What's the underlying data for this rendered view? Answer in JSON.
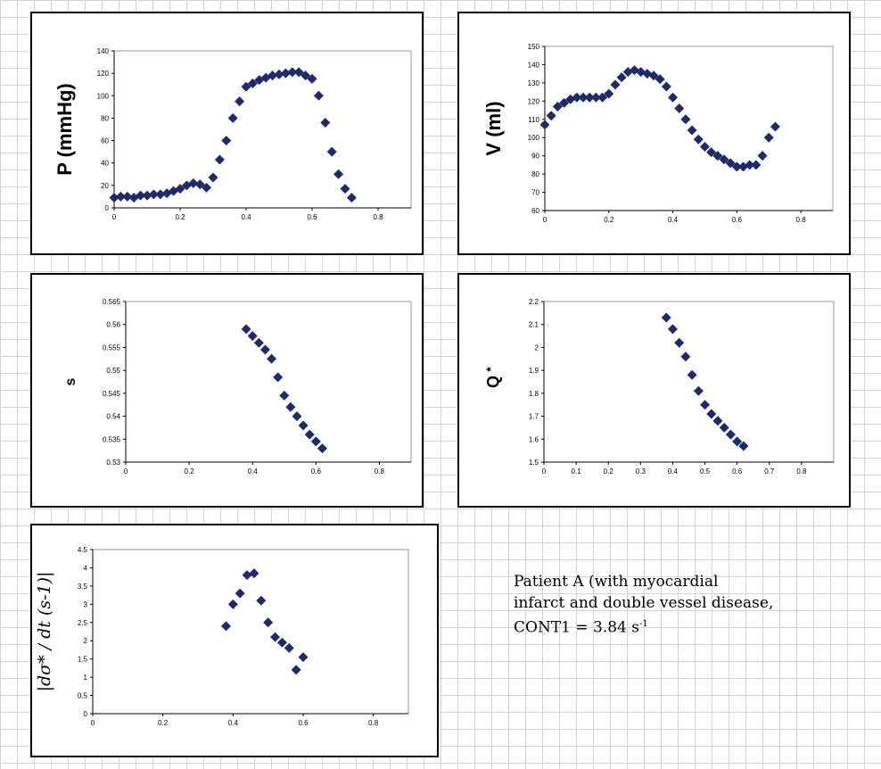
{
  "chart_data": [
    {
      "id": "P",
      "type": "scatter",
      "ylabel": "P (mmHg)",
      "xlim": [
        0,
        0.9
      ],
      "ylim": [
        0,
        140
      ],
      "xticks": [
        "0",
        "0.2",
        "0.4",
        "0.6",
        "0.8"
      ],
      "yticks": [
        "0",
        "20",
        "40",
        "60",
        "80",
        "100",
        "120",
        "140"
      ],
      "x": [
        0,
        0.02,
        0.04,
        0.06,
        0.08,
        0.1,
        0.12,
        0.14,
        0.16,
        0.18,
        0.2,
        0.22,
        0.24,
        0.26,
        0.28,
        0.3,
        0.32,
        0.34,
        0.36,
        0.38,
        0.4,
        0.42,
        0.44,
        0.46,
        0.48,
        0.5,
        0.52,
        0.54,
        0.56,
        0.58,
        0.6,
        0.62,
        0.64,
        0.66,
        0.68,
        0.7,
        0.72
      ],
      "y": [
        9,
        10,
        10,
        9,
        11,
        11,
        12,
        12,
        13,
        15,
        17,
        20,
        22,
        21,
        18,
        27,
        43,
        60,
        80,
        95,
        108,
        111,
        114,
        116,
        118,
        119,
        120,
        121,
        121,
        118,
        115,
        100,
        76,
        50,
        30,
        17,
        9
      ]
    },
    {
      "id": "V",
      "type": "scatter",
      "ylabel": "V (ml)",
      "xlim": [
        0,
        0.9
      ],
      "ylim": [
        60,
        150
      ],
      "xticks": [
        "0",
        "0.2",
        "0.4",
        "0.6",
        "0.8"
      ],
      "yticks": [
        "60",
        "70",
        "80",
        "90",
        "100",
        "110",
        "120",
        "130",
        "140",
        "150"
      ],
      "x": [
        0,
        0.02,
        0.04,
        0.06,
        0.08,
        0.1,
        0.12,
        0.14,
        0.16,
        0.18,
        0.2,
        0.22,
        0.24,
        0.26,
        0.28,
        0.3,
        0.32,
        0.34,
        0.36,
        0.38,
        0.4,
        0.42,
        0.44,
        0.46,
        0.48,
        0.5,
        0.52,
        0.54,
        0.56,
        0.58,
        0.6,
        0.62,
        0.64,
        0.66,
        0.68,
        0.7,
        0.72
      ],
      "y": [
        107,
        112,
        117,
        119,
        121,
        122,
        122,
        122,
        122,
        122,
        124,
        129,
        133,
        136,
        137,
        136,
        135,
        134,
        132,
        128,
        122,
        116,
        110,
        104,
        99,
        95,
        92,
        90,
        88,
        86,
        84,
        84,
        85,
        85,
        90,
        100,
        106
      ]
    },
    {
      "id": "s",
      "type": "scatter",
      "ylabel": "s",
      "xlim": [
        0,
        0.9
      ],
      "ylim": [
        0.53,
        0.565
      ],
      "xticks": [
        "0",
        "0.2",
        "0.4",
        "0.6",
        "0.8"
      ],
      "yticks": [
        "0.53",
        "0.535",
        "0.54",
        "0.545",
        "0.55",
        "0.555",
        "0.56",
        "0.565"
      ],
      "x": [
        0.38,
        0.4,
        0.42,
        0.44,
        0.46,
        0.48,
        0.5,
        0.52,
        0.54,
        0.56,
        0.58,
        0.6,
        0.62
      ],
      "y": [
        0.559,
        0.5575,
        0.556,
        0.5545,
        0.5525,
        0.5485,
        0.5445,
        0.542,
        0.54,
        0.538,
        0.536,
        0.5345,
        0.533
      ]
    },
    {
      "id": "Q",
      "type": "scatter",
      "ylabel": "Q*",
      "xlim": [
        0,
        0.9
      ],
      "ylim": [
        1.5,
        2.2
      ],
      "xticks": [
        "0",
        "0.1",
        "0.2",
        "0.3",
        "0.4",
        "0.5",
        "0.6",
        "0.7",
        "0.8"
      ],
      "yticks": [
        "1.5",
        "1.6",
        "1.7",
        "1.8",
        "1.9",
        "2",
        "2.1",
        "2.2"
      ],
      "x": [
        0.38,
        0.4,
        0.42,
        0.44,
        0.46,
        0.48,
        0.5,
        0.52,
        0.54,
        0.56,
        0.58,
        0.6,
        0.62
      ],
      "y": [
        2.13,
        2.08,
        2.02,
        1.96,
        1.88,
        1.81,
        1.75,
        1.71,
        1.68,
        1.65,
        1.62,
        1.59,
        1.57
      ]
    },
    {
      "id": "D",
      "type": "scatter",
      "ylabel": "|dσ* / dt (s-1)|",
      "xlim": [
        0,
        0.9
      ],
      "ylim": [
        0,
        4.5
      ],
      "xticks": [
        "0",
        "0.2",
        "0.4",
        "0.6",
        "0.8"
      ],
      "yticks": [
        "0",
        "0.5",
        "1",
        "1.5",
        "2",
        "2.5",
        "3",
        "3.5",
        "4",
        "4.5"
      ],
      "x": [
        0.38,
        0.4,
        0.42,
        0.44,
        0.46,
        0.48,
        0.5,
        0.52,
        0.54,
        0.56,
        0.58,
        0.6
      ],
      "y": [
        2.4,
        3.0,
        3.3,
        3.8,
        3.85,
        3.1,
        2.5,
        2.1,
        1.95,
        1.8,
        1.2,
        1.55
      ]
    }
  ],
  "caption": {
    "line1": "Patient A (with myocardial",
    "line2": "infarct and double vessel disease,",
    "line3": "CONT1 = 3.84 s",
    "line3_sup": "-1"
  },
  "colors": {
    "marker": "#1f2a6b",
    "plot_border": "#999999"
  }
}
